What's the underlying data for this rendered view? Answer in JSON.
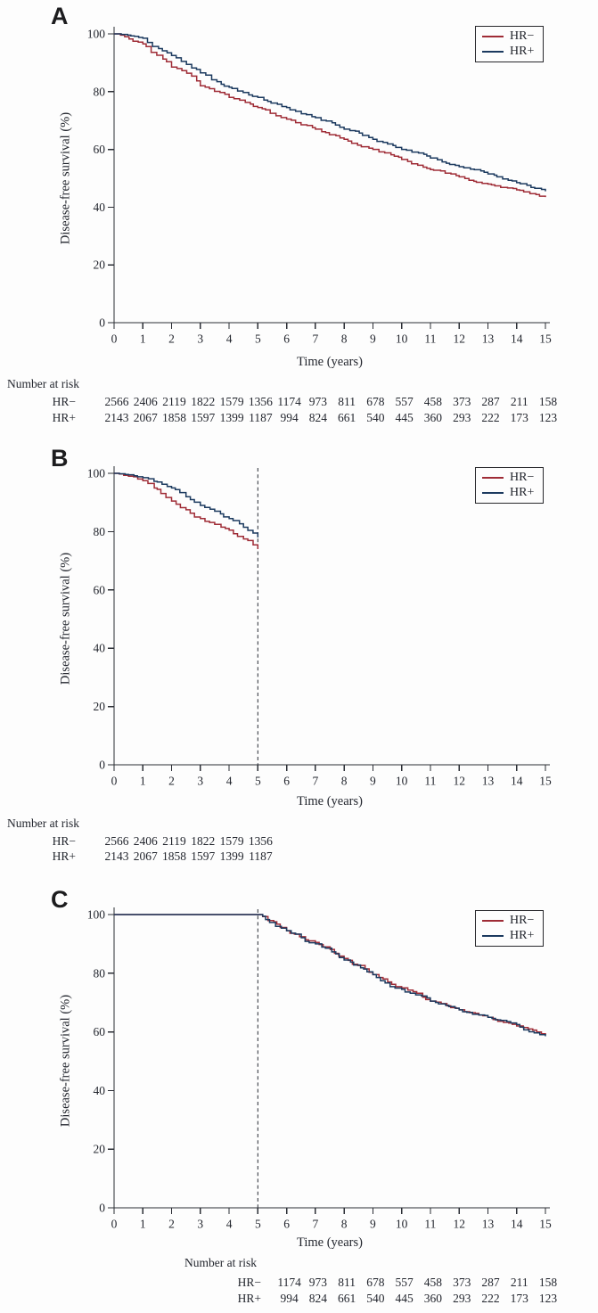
{
  "figure": {
    "description": "Three-panel Kaplan-Meier disease-free survival figure",
    "text_color": "#23262e",
    "axis_color": "#2b2e35",
    "dashed_line_color": "#3b3e45"
  },
  "chart_data": [
    {
      "panel": "A",
      "type": "line",
      "title": "",
      "xlabel": "Time (years)",
      "ylabel": "Disease-free survival (%)",
      "xlim": [
        0,
        15
      ],
      "ylim": [
        0,
        100
      ],
      "x_ticks": [
        0,
        1,
        2,
        3,
        4,
        5,
        6,
        7,
        8,
        9,
        10,
        11,
        12,
        13,
        14,
        15
      ],
      "y_ticks": [
        0,
        20,
        40,
        60,
        80,
        100
      ],
      "grid": false,
      "legend_position": "top-right",
      "reference_line_x": null,
      "x": [
        0,
        1,
        2,
        3,
        4,
        5,
        6,
        7,
        8,
        9,
        10,
        11,
        12,
        13,
        14,
        15
      ],
      "series": [
        {
          "name": "HR−",
          "color": "#9f2c36",
          "values": [
            100,
            96.5,
            88.5,
            82,
            78,
            74.5,
            70.5,
            67,
            63.5,
            60,
            56.5,
            53,
            50.5,
            48,
            46,
            43.5
          ]
        },
        {
          "name": "HR+",
          "color": "#1c3a5f",
          "values": [
            100,
            98.5,
            92.5,
            86.5,
            81.5,
            78,
            74.5,
            71,
            67,
            63.5,
            60,
            57,
            54,
            51.5,
            48.5,
            45.5
          ]
        }
      ],
      "number_at_risk": {
        "title": "Number at risk",
        "start_year": 0,
        "rows": [
          {
            "label": "HR−",
            "values": [
              2566,
              2406,
              2119,
              1822,
              1579,
              1356,
              1174,
              973,
              811,
              678,
              557,
              458,
              373,
              287,
              211,
              158
            ]
          },
          {
            "label": "HR+",
            "values": [
              2143,
              2067,
              1858,
              1597,
              1399,
              1187,
              994,
              824,
              661,
              540,
              445,
              360,
              293,
              222,
              173,
              123
            ]
          }
        ]
      }
    },
    {
      "panel": "B",
      "type": "line",
      "title": "",
      "xlabel": "Time (years)",
      "ylabel": "Disease-free survival (%)",
      "xlim": [
        0,
        15
      ],
      "ylim": [
        0,
        100
      ],
      "x_ticks": [
        0,
        1,
        2,
        3,
        4,
        5,
        6,
        7,
        8,
        9,
        10,
        11,
        12,
        13,
        14,
        15
      ],
      "y_ticks": [
        0,
        20,
        40,
        60,
        80,
        100
      ],
      "grid": false,
      "legend_position": "top-right",
      "reference_line_x": 5,
      "x": [
        0,
        0.5,
        1,
        1.5,
        2,
        2.5,
        3,
        3.5,
        4,
        4.5,
        5
      ],
      "series": [
        {
          "name": "HR−",
          "color": "#9f2c36",
          "values": [
            100,
            99,
            97.5,
            94.5,
            90.5,
            87.5,
            84.5,
            82.5,
            80.5,
            77.5,
            74
          ]
        },
        {
          "name": "HR+",
          "color": "#1c3a5f",
          "values": [
            100,
            99.5,
            98.5,
            97,
            95,
            92,
            89,
            87,
            84.5,
            81.5,
            78
          ]
        }
      ],
      "number_at_risk": {
        "title": "Number at risk",
        "start_year": 0,
        "rows": [
          {
            "label": "HR−",
            "values": [
              2566,
              2406,
              2119,
              1822,
              1579,
              1356
            ]
          },
          {
            "label": "HR+",
            "values": [
              2143,
              2067,
              1858,
              1597,
              1399,
              1187
            ]
          }
        ]
      }
    },
    {
      "panel": "C",
      "type": "line",
      "title": "",
      "xlabel": "Time (years)",
      "ylabel": "Disease-free survival (%)",
      "xlim": [
        0,
        15
      ],
      "ylim": [
        0,
        100
      ],
      "x_ticks": [
        0,
        1,
        2,
        3,
        4,
        5,
        6,
        7,
        8,
        9,
        10,
        11,
        12,
        13,
        14,
        15
      ],
      "y_ticks": [
        0,
        20,
        40,
        60,
        80,
        100
      ],
      "grid": false,
      "legend_position": "top-right",
      "reference_line_x": 5,
      "x": [
        0,
        1,
        2,
        3,
        4,
        5,
        6,
        7,
        8,
        9,
        10,
        11,
        12,
        13,
        14,
        15
      ],
      "series": [
        {
          "name": "HR−",
          "color": "#9f2c36",
          "values": [
            100,
            100,
            100,
            100,
            100,
            100,
            94.5,
            90.5,
            85,
            79.5,
            75,
            70.5,
            67.5,
            65,
            62,
            59
          ]
        },
        {
          "name": "HR+",
          "color": "#1c3a5f",
          "values": [
            100,
            100,
            100,
            100,
            100,
            100,
            94.5,
            90,
            84.5,
            79.5,
            74.5,
            70.5,
            67.5,
            65,
            62.5,
            58.5
          ]
        }
      ],
      "number_at_risk": {
        "title": "Number at risk",
        "start_year": 6,
        "rows": [
          {
            "label": "HR−",
            "values": [
              1174,
              973,
              811,
              678,
              557,
              458,
              373,
              287,
              211,
              158
            ]
          },
          {
            "label": "HR+",
            "values": [
              994,
              824,
              661,
              540,
              445,
              360,
              293,
              222,
              173,
              123
            ]
          }
        ]
      }
    }
  ]
}
